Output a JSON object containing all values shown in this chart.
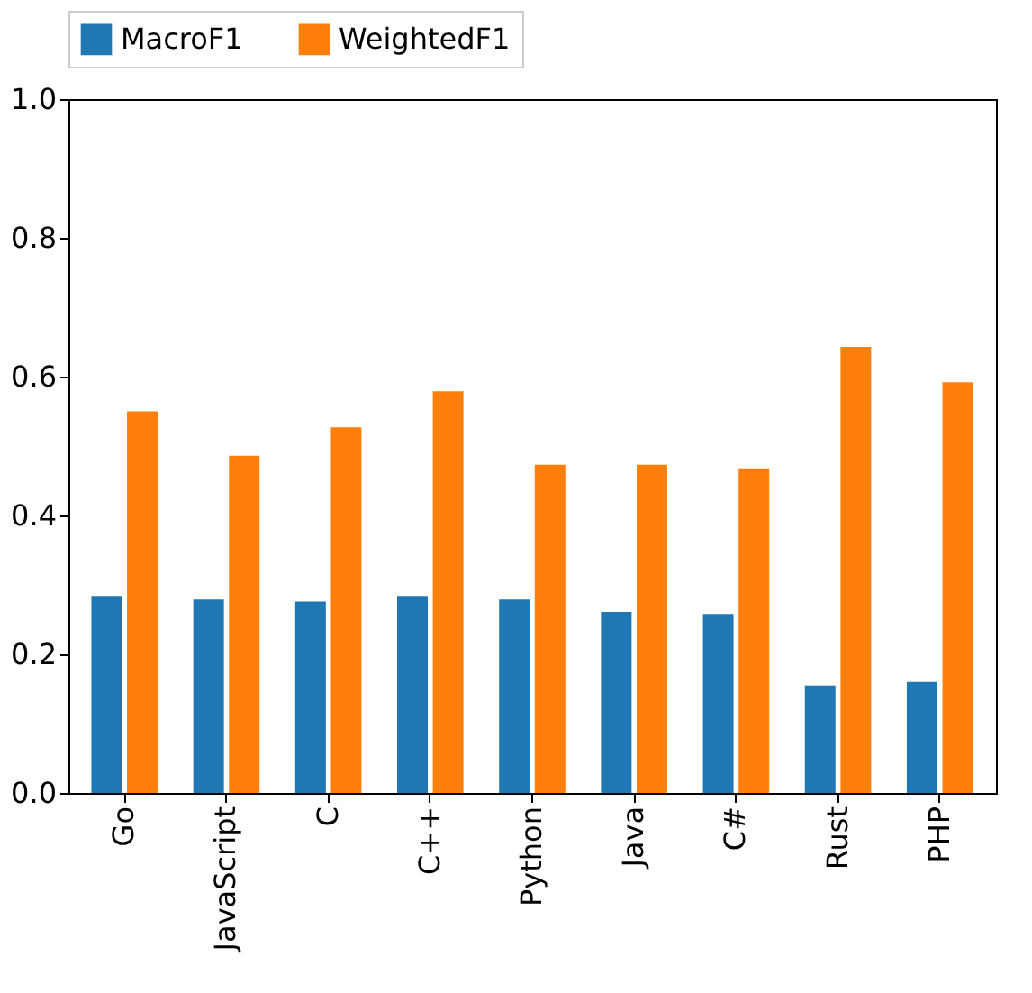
{
  "chart_data": {
    "type": "bar",
    "categories": [
      "Go",
      "JavaScript",
      "C",
      "C++",
      "Python",
      "Java",
      "C#",
      "Rust",
      "PHP"
    ],
    "series": [
      {
        "name": "MacroF1",
        "color": "#1f77b4",
        "values": [
          0.284,
          0.279,
          0.276,
          0.284,
          0.279,
          0.261,
          0.258,
          0.155,
          0.16
        ]
      },
      {
        "name": "WeightedF1",
        "color": "#ff7f0e",
        "values": [
          0.55,
          0.486,
          0.527,
          0.579,
          0.473,
          0.473,
          0.468,
          0.643,
          0.592
        ]
      }
    ],
    "ylim": [
      0,
      1
    ],
    "yticks": [
      {
        "value": 0,
        "label": "0.0"
      },
      {
        "value": 0.2,
        "label": "0.2"
      },
      {
        "value": 0.4,
        "label": "0.4"
      },
      {
        "value": 0.6,
        "label": "0.6"
      },
      {
        "value": 0.8,
        "label": "0.8"
      },
      {
        "value": 1,
        "label": "1.0"
      }
    ],
    "grid": false,
    "legend": "top"
  }
}
